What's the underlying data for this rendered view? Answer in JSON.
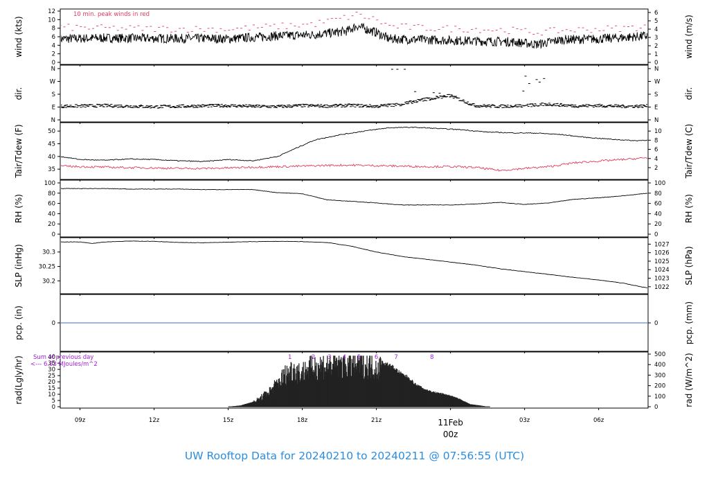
{
  "title": "UW Rooftop Data for 20240210  to  20240211 @ 07:56:55  (UTC)",
  "colors": {
    "title": "#2a8de0",
    "red": "#e03a5a",
    "purple": "#a020d8",
    "blue": "#3a6fc6",
    "line": "#000000"
  },
  "x_axis": {
    "ticks": [
      {
        "hour": 9,
        "label": "09z"
      },
      {
        "hour": 12,
        "label": "12z"
      },
      {
        "hour": 15,
        "label": "15z"
      },
      {
        "hour": 18,
        "label": "18z"
      },
      {
        "hour": 21,
        "label": "21z"
      },
      {
        "hour": 24,
        "label": ""
      },
      {
        "hour": 27,
        "label": "03z"
      },
      {
        "hour": 30,
        "label": "06z"
      }
    ],
    "day_label": "11Feb",
    "day_time": "00z",
    "range_hours": [
      8.2,
      32
    ]
  },
  "chart_data": [
    {
      "type": "line",
      "ylabel": "wind (kts)",
      "ylabel_right": "wind (m/s)",
      "ylim": [
        0,
        12
      ],
      "ticks": [
        0,
        2,
        4,
        6,
        8,
        10,
        12
      ],
      "ylim_right": [
        0,
        6.17
      ],
      "ticks_right": [
        0,
        1,
        2,
        3,
        4,
        5,
        6
      ],
      "annotation": "10 min. peak winds in red",
      "series": [
        {
          "hours": [
            8.2,
            10,
            12,
            14,
            15,
            17,
            18.5,
            19.8,
            20.2,
            21,
            21.5,
            23,
            25,
            26.5,
            27.5,
            28.5,
            30,
            31,
            32
          ],
          "values": [
            5.5,
            5.7,
            5.6,
            5.6,
            5.5,
            6.2,
            6.5,
            7.3,
            8.5,
            7.0,
            5.5,
            5.3,
            5.0,
            4.8,
            4.2,
            5.3,
            5.5,
            5.8,
            6.2
          ]
        },
        {
          "hours": [
            8.2,
            10,
            12,
            14,
            15,
            17,
            18.5,
            19.8,
            20.2,
            21,
            21.5,
            23,
            25,
            26.5,
            27.5,
            28.5,
            30,
            31,
            32
          ],
          "values": [
            8.2,
            8.0,
            7.9,
            7.8,
            7.8,
            8.4,
            9.0,
            10.5,
            11.2,
            10.0,
            8.5,
            8.0,
            7.8,
            7.5,
            7.0,
            7.5,
            7.8,
            8.0,
            8.4
          ]
        }
      ]
    },
    {
      "type": "scatter",
      "ylabel": "dir.",
      "ylabel_right": "dir.",
      "categories": [
        "N",
        "E",
        "S",
        "W",
        "N"
      ],
      "ylim": [
        0,
        360
      ],
      "series": [
        {
          "hours": [
            8.2,
            10,
            12,
            14,
            15,
            16,
            17,
            18,
            19,
            20,
            21,
            22,
            23,
            24,
            25,
            26,
            27,
            28,
            29,
            30,
            31,
            32
          ],
          "values": [
            95,
            100,
            92,
            98,
            100,
            95,
            93,
            100,
            97,
            102,
            95,
            110,
            145,
            170,
            100,
            95,
            100,
            110,
            98,
            100,
            95,
            97
          ]
        }
      ]
    },
    {
      "type": "line",
      "ylabel": "Tair/Tdew (F)",
      "ylabel_right": "Tair/Tdew (C)",
      "ylim": [
        31.5,
        52.5
      ],
      "ticks": [
        35,
        40,
        45,
        50
      ],
      "ticks_right": [
        2,
        4,
        6,
        8,
        10
      ],
      "series": [
        {
          "hours": [
            8.2,
            9,
            10,
            11,
            12,
            13,
            14,
            15,
            16,
            17,
            17.8,
            18.5,
            19.5,
            20.5,
            21.5,
            22.5,
            23.5,
            24.5,
            25.5,
            26.5,
            27.5,
            28.5,
            29.5,
            30.5,
            31.5,
            32
          ],
          "values": [
            40.0,
            38.8,
            38.5,
            39.0,
            38.8,
            38.3,
            38.0,
            38.8,
            38.3,
            40.0,
            43.5,
            46.5,
            48.5,
            50.0,
            51.3,
            51.5,
            51.0,
            50.5,
            49.6,
            49.3,
            49.2,
            48.6,
            47.5,
            46.8,
            46.2,
            46.5
          ]
        },
        {
          "hours": [
            8.2,
            9,
            10,
            11,
            12,
            13,
            14,
            15,
            16,
            17,
            18,
            19,
            20,
            21,
            22,
            23,
            24,
            25,
            26,
            27,
            28,
            29,
            30,
            31,
            32
          ],
          "values": [
            36.2,
            36.0,
            35.8,
            35.6,
            35.5,
            35.3,
            35.3,
            35.5,
            35.8,
            36.0,
            36.2,
            36.5,
            36.6,
            36.4,
            36.2,
            36.0,
            36.0,
            35.7,
            34.5,
            35.3,
            36.0,
            37.5,
            38.2,
            38.8,
            39.5
          ]
        }
      ]
    },
    {
      "type": "line",
      "ylabel": "RH (%)",
      "ylabel_right": "RH (%)",
      "ylim": [
        0,
        100
      ],
      "ticks": [
        0,
        20,
        40,
        60,
        80,
        100
      ],
      "series": [
        {
          "hours": [
            8.2,
            9,
            10,
            11,
            12,
            13,
            14,
            15,
            16,
            17,
            18,
            19,
            20,
            21,
            22,
            23,
            24,
            25,
            26,
            27,
            28,
            29,
            30,
            31,
            32
          ],
          "values": [
            89,
            89,
            89,
            88,
            88,
            88,
            87,
            87,
            87,
            81,
            79,
            67,
            64,
            61,
            57,
            57,
            57,
            59,
            62,
            58,
            61,
            68,
            71,
            75,
            80
          ]
        }
      ]
    },
    {
      "type": "line",
      "ylabel": "SLP (inHg)",
      "ylabel_right": "SLP (hPa)",
      "ylim": [
        30.16,
        30.345
      ],
      "ticks": [
        30.2,
        30.25,
        30.3
      ],
      "ticks_right": [
        1022,
        1023,
        1024,
        1025,
        1026,
        1027
      ],
      "series": [
        {
          "hours": [
            8.2,
            9,
            9.5,
            10,
            11,
            12,
            13,
            14,
            15,
            16,
            17,
            18,
            19,
            20,
            21,
            22,
            23,
            24,
            25,
            26,
            27,
            28,
            29,
            30,
            31,
            31.8,
            32
          ],
          "values": [
            30.335,
            30.335,
            30.33,
            30.335,
            30.338,
            30.337,
            30.333,
            30.332,
            30.334,
            30.336,
            30.337,
            30.336,
            30.333,
            30.32,
            30.3,
            30.285,
            30.275,
            30.265,
            30.255,
            30.242,
            30.232,
            30.222,
            30.212,
            30.203,
            30.192,
            30.178,
            30.176
          ]
        }
      ]
    },
    {
      "type": "line",
      "ylabel": "pcp. (in)",
      "ylabel_right": "pcp. (mm)",
      "ylim": [
        -1,
        1
      ],
      "ticks": [
        0
      ],
      "ticks_right": [
        0
      ],
      "series": [
        {
          "hours": [
            8.2,
            32
          ],
          "values": [
            0,
            0
          ]
        }
      ]
    },
    {
      "type": "area",
      "ylabel": "rad(Lgly/hr)",
      "ylabel_right": "rad (W/m^2)",
      "ylim": [
        0,
        44
      ],
      "ticks": [
        0,
        5,
        10,
        15,
        20,
        25,
        30,
        35,
        40
      ],
      "ticks_right": [
        0,
        100,
        200,
        300,
        400,
        500
      ],
      "annotation_line1": "Sum of previous day",
      "annotation_line2": "<--- 6.03 MJoules/m^2",
      "hour_markers": [
        {
          "hour": 17.5,
          "label": "1"
        },
        {
          "hour": 18.45,
          "label": "2"
        },
        {
          "hour": 19.1,
          "label": "3"
        },
        {
          "hour": 19.7,
          "label": "4"
        },
        {
          "hour": 20.3,
          "label": "5"
        },
        {
          "hour": 21.0,
          "label": "6"
        },
        {
          "hour": 21.8,
          "label": "7"
        },
        {
          "hour": 23.25,
          "label": "8"
        }
      ],
      "series": [
        {
          "hours": [
            15,
            15.5,
            16,
            16.3,
            16.7,
            17,
            17.3,
            17.6,
            18,
            18.3,
            18.8,
            19.3,
            19.8,
            20.3,
            20.7,
            21,
            21.3,
            21.7,
            22,
            22.3,
            22.6,
            23,
            23.3,
            23.6,
            24,
            24.4,
            24.8,
            25.2,
            25.5
          ],
          "values": [
            0,
            1,
            4,
            8,
            15,
            22,
            30,
            35,
            32,
            37,
            39,
            40,
            40,
            40,
            40,
            38,
            36,
            32,
            27,
            24,
            18,
            14,
            12,
            11,
            9,
            6,
            2,
            1,
            0
          ]
        }
      ]
    }
  ]
}
